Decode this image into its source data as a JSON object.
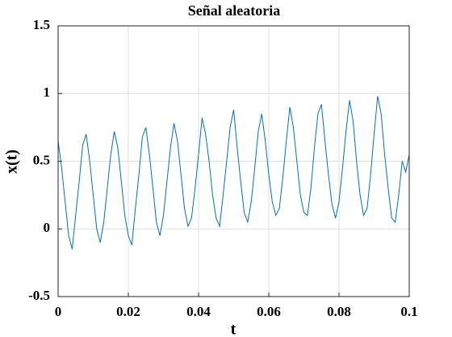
{
  "chart_data": {
    "type": "line",
    "title": "Señal aleatoria",
    "x_label": "t",
    "y_label": "x(t)",
    "x": [
      0,
      0.001,
      0.002,
      0.003,
      0.004,
      0.005,
      0.006,
      0.007,
      0.008,
      0.009,
      0.01,
      0.011,
      0.012,
      0.013,
      0.014,
      0.015,
      0.016,
      0.017,
      0.018,
      0.019,
      0.02,
      0.021,
      0.022,
      0.023,
      0.024,
      0.025,
      0.026,
      0.027,
      0.028,
      0.029,
      0.03,
      0.031,
      0.032,
      0.033,
      0.034,
      0.035,
      0.036,
      0.037,
      0.038,
      0.039,
      0.04,
      0.041,
      0.042,
      0.043,
      0.044,
      0.045,
      0.046,
      0.047,
      0.048,
      0.049,
      0.05,
      0.051,
      0.052,
      0.053,
      0.054,
      0.055,
      0.056,
      0.057,
      0.058,
      0.059,
      0.06,
      0.061,
      0.062,
      0.063,
      0.064,
      0.065,
      0.066,
      0.067,
      0.068,
      0.069,
      0.07,
      0.071,
      0.072,
      0.073,
      0.074,
      0.075,
      0.076,
      0.077,
      0.078,
      0.079,
      0.08,
      0.081,
      0.082,
      0.083,
      0.084,
      0.085,
      0.086,
      0.087,
      0.088,
      0.089,
      0.09,
      0.091,
      0.092,
      0.093,
      0.094,
      0.095,
      0.096,
      0.097,
      0.098,
      0.099,
      0.1
    ],
    "series": [
      {
        "name": "x(t)",
        "color": "#0072bd",
        "values": [
          0.65,
          0.45,
          0.2,
          -0.05,
          -0.15,
          0.1,
          0.35,
          0.62,
          0.7,
          0.5,
          0.25,
          0.0,
          -0.1,
          0.05,
          0.3,
          0.55,
          0.72,
          0.6,
          0.35,
          0.1,
          -0.05,
          -0.12,
          0.15,
          0.4,
          0.68,
          0.75,
          0.55,
          0.3,
          0.05,
          -0.05,
          0.1,
          0.35,
          0.6,
          0.78,
          0.65,
          0.4,
          0.15,
          0.02,
          0.08,
          0.3,
          0.55,
          0.82,
          0.7,
          0.5,
          0.25,
          0.08,
          0.02,
          0.25,
          0.5,
          0.75,
          0.88,
          0.6,
          0.35,
          0.12,
          0.05,
          0.2,
          0.45,
          0.72,
          0.85,
          0.65,
          0.4,
          0.2,
          0.1,
          0.15,
          0.38,
          0.65,
          0.9,
          0.75,
          0.5,
          0.25,
          0.12,
          0.1,
          0.3,
          0.6,
          0.85,
          0.92,
          0.65,
          0.4,
          0.18,
          0.08,
          0.2,
          0.45,
          0.72,
          0.95,
          0.8,
          0.5,
          0.25,
          0.1,
          0.15,
          0.4,
          0.7,
          0.98,
          0.85,
          0.55,
          0.3,
          0.08,
          0.05,
          0.25,
          0.5,
          0.42,
          0.55
        ]
      }
    ],
    "xlim": [
      0,
      0.1
    ],
    "xticks": [
      0,
      0.02,
      0.04,
      0.06,
      0.08,
      0.1
    ],
    "ylim": [
      -0.5,
      1.5
    ],
    "yticks": [
      -0.5,
      0,
      0.5,
      1,
      1.5
    ],
    "grid": true
  }
}
